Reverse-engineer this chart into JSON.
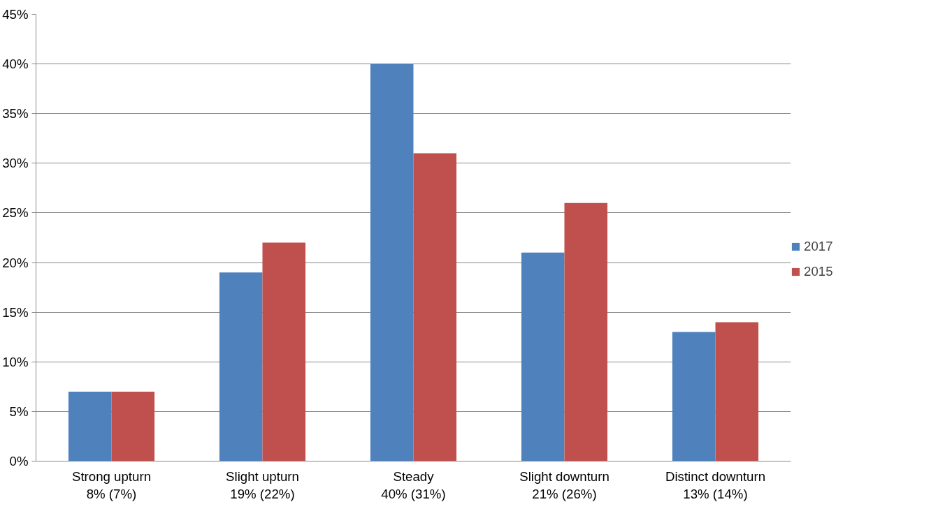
{
  "chart_data": {
    "type": "bar",
    "categories": [
      "Strong upturn\n8% (7%)",
      "Slight upturn\n19% (22%)",
      "Steady\n40% (31%)",
      "Slight downturn\n21% (26%)",
      "Distinct downturn\n13% (14%)"
    ],
    "series": [
      {
        "name": "2017",
        "color": "#4f81bd",
        "values": [
          7,
          19,
          40,
          21,
          13
        ]
      },
      {
        "name": "2015",
        "color": "#c0504d",
        "values": [
          7,
          22,
          31,
          26,
          14
        ]
      }
    ],
    "ylim": [
      0,
      45
    ],
    "yticks": [
      {
        "value": 0,
        "label": "0%"
      },
      {
        "value": 5,
        "label": "5%"
      },
      {
        "value": 10,
        "label": "10%"
      },
      {
        "value": 15,
        "label": "15%"
      },
      {
        "value": 20,
        "label": "20%"
      },
      {
        "value": 25,
        "label": "25%"
      },
      {
        "value": 30,
        "label": "30%"
      },
      {
        "value": 35,
        "label": "35%"
      },
      {
        "value": 40,
        "label": "40%"
      },
      {
        "value": 45,
        "label": "45%"
      }
    ],
    "grid": "y",
    "legend": "right"
  }
}
